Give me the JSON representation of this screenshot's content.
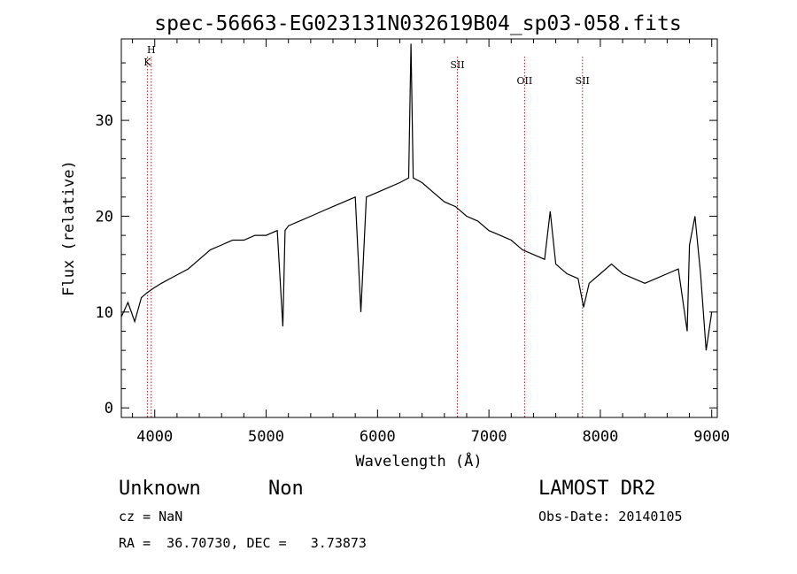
{
  "chart_data": {
    "type": "line",
    "title": "spec-56663-EG023131N032619B04_sp03-058.fits",
    "xlabel": "Wavelength (Å)",
    "ylabel": "Flux (relative)",
    "xlim": [
      3700,
      9050
    ],
    "ylim": [
      -1,
      38.5
    ],
    "x_ticks": [
      4000,
      5000,
      6000,
      7000,
      8000,
      9000
    ],
    "x_tick_labels": [
      "4000",
      "5000",
      "6000",
      "7000",
      "8000",
      "9000"
    ],
    "y_ticks": [
      0,
      10,
      20,
      30
    ],
    "y_tick_labels": [
      "0",
      "10",
      "20",
      "30"
    ],
    "grid": false,
    "line_color": "#000000",
    "marker_color": "#b22222",
    "series": [
      {
        "x": [
          3700,
          3760,
          3820,
          3880,
          3930,
          3990,
          4060,
          4140,
          4220,
          4300,
          4400,
          4500,
          4600,
          4700,
          4800,
          4900,
          5000,
          5100,
          5150,
          5170,
          5200,
          5300,
          5400,
          5500,
          5600,
          5700,
          5800,
          5850,
          5900,
          6000,
          6100,
          6200,
          6280,
          6300,
          6320,
          6400,
          6500,
          6600,
          6700,
          6800,
          6900,
          7000,
          7100,
          7200,
          7300,
          7400,
          7500,
          7550,
          7600,
          7700,
          7800,
          7850,
          7900,
          8000,
          8100,
          8200,
          8300,
          8400,
          8500,
          8600,
          8700,
          8780,
          8800,
          8850,
          8900,
          8950,
          9000
        ],
        "y": [
          9.5,
          11.0,
          9.0,
          11.5,
          12.0,
          12.5,
          13.0,
          13.5,
          14.0,
          14.5,
          15.5,
          16.5,
          17.0,
          17.5,
          17.5,
          18.0,
          18.0,
          18.5,
          8.5,
          18.5,
          19.0,
          19.5,
          20.0,
          20.5,
          21.0,
          21.5,
          22.0,
          10.0,
          22.0,
          22.5,
          23.0,
          23.5,
          24.0,
          38.0,
          24.0,
          23.5,
          22.5,
          21.5,
          21.0,
          20.0,
          19.5,
          18.5,
          18.0,
          17.5,
          16.5,
          16.0,
          15.5,
          20.5,
          15.0,
          14.0,
          13.5,
          10.5,
          13.0,
          14.0,
          15.0,
          14.0,
          13.5,
          13.0,
          13.5,
          14.0,
          14.5,
          8.0,
          17.0,
          20.0,
          14.0,
          6.0,
          10.0
        ]
      }
    ],
    "line_markers": [
      {
        "label": "K",
        "x": 3934
      },
      {
        "label": "H",
        "x": 3969
      },
      {
        "label": "SII",
        "x": 6717
      },
      {
        "label": "OII",
        "x": 7320
      },
      {
        "label": "SII",
        "x": 7840
      }
    ],
    "annotations": {
      "left_line1_a": "Unknown",
      "left_line1_b": "Non",
      "left_line2": "cz = NaN",
      "left_line3": "RA =  36.70730, DEC =   3.73873",
      "right_line1": "LAMOST DR2",
      "right_line2": "Obs-Date: 20140105"
    }
  }
}
